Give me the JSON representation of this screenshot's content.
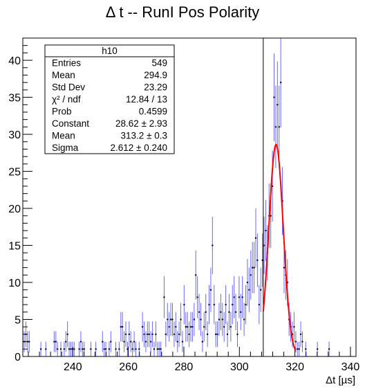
{
  "chart_data": {
    "type": "scatter",
    "title": "Δ t -- RunI Pos Polarity",
    "xlabel": "Δt [µs]",
    "ylabel": "",
    "xlim": [
      222,
      342
    ],
    "ylim": [
      0,
      43
    ],
    "x_ticks": [
      "240",
      "260",
      "280",
      "300",
      "320",
      "340"
    ],
    "y_ticks": [
      "0",
      "5",
      "10",
      "15",
      "20",
      "25",
      "30",
      "35",
      "40"
    ],
    "grid": false,
    "series": [
      {
        "kind": "histogram_points_with_errors",
        "color": "#0000ff",
        "points": [
          [
            222.5,
            2
          ],
          [
            223.1,
            3
          ],
          [
            223.7,
            2
          ],
          [
            224.3,
            2
          ],
          [
            228.5,
            1
          ],
          [
            230.3,
            1
          ],
          [
            233.3,
            2
          ],
          [
            233.9,
            2
          ],
          [
            234.5,
            1
          ],
          [
            235.7,
            1
          ],
          [
            236.9,
            1
          ],
          [
            237.5,
            2
          ],
          [
            238.1,
            3
          ],
          [
            238.7,
            1
          ],
          [
            239.3,
            1
          ],
          [
            239.9,
            1
          ],
          [
            240.5,
            1
          ],
          [
            242.3,
            1
          ],
          [
            242.9,
            2
          ],
          [
            243.5,
            1
          ],
          [
            244.1,
            1
          ],
          [
            246.5,
            1
          ],
          [
            248.3,
            1
          ],
          [
            250.7,
            2
          ],
          [
            251.3,
            1
          ],
          [
            251.9,
            1
          ],
          [
            253.1,
            1
          ],
          [
            253.7,
            2
          ],
          [
            255.5,
            1
          ],
          [
            256.7,
            1
          ],
          [
            257.3,
            4
          ],
          [
            257.9,
            4
          ],
          [
            258.5,
            2
          ],
          [
            259.1,
            3
          ],
          [
            259.7,
            1
          ],
          [
            260.3,
            3
          ],
          [
            260.9,
            2
          ],
          [
            261.5,
            1
          ],
          [
            262.1,
            2
          ],
          [
            262.7,
            1
          ],
          [
            263.9,
            1
          ],
          [
            265.1,
            4
          ],
          [
            265.7,
            3
          ],
          [
            266.3,
            2
          ],
          [
            266.9,
            3
          ],
          [
            267.5,
            3
          ],
          [
            268.1,
            2
          ],
          [
            268.7,
            3
          ],
          [
            269.3,
            1
          ],
          [
            269.9,
            3
          ],
          [
            270.5,
            1
          ],
          [
            271.1,
            1
          ],
          [
            271.7,
            1
          ],
          [
            272.9,
            8
          ],
          [
            273.5,
            3
          ],
          [
            274.1,
            5
          ],
          [
            274.7,
            4
          ],
          [
            275.3,
            5
          ],
          [
            275.9,
            5
          ],
          [
            276.5,
            3
          ],
          [
            277.1,
            4
          ],
          [
            277.7,
            2
          ],
          [
            278.3,
            3
          ],
          [
            278.9,
            5
          ],
          [
            279.5,
            2
          ],
          [
            280.1,
            7
          ],
          [
            280.7,
            4
          ],
          [
            281.3,
            4
          ],
          [
            281.9,
            3
          ],
          [
            282.5,
            4
          ],
          [
            283.1,
            4
          ],
          [
            283.7,
            5
          ],
          [
            284.3,
            11
          ],
          [
            284.9,
            8
          ],
          [
            285.5,
            6
          ],
          [
            286.1,
            5
          ],
          [
            286.7,
            2
          ],
          [
            287.3,
            4
          ],
          [
            287.9,
            6
          ],
          [
            288.5,
            3
          ],
          [
            289.1,
            7
          ],
          [
            289.7,
            9
          ],
          [
            290.3,
            15
          ],
          [
            290.9,
            7
          ],
          [
            291.5,
            3
          ],
          [
            292.1,
            3
          ],
          [
            292.7,
            5
          ],
          [
            293.3,
            6
          ],
          [
            293.9,
            5
          ],
          [
            294.5,
            4
          ],
          [
            295.1,
            7
          ],
          [
            295.7,
            3
          ],
          [
            296.3,
            6
          ],
          [
            296.9,
            4
          ],
          [
            297.5,
            7
          ],
          [
            298.1,
            8
          ],
          [
            298.7,
            6
          ],
          [
            299.3,
            3
          ],
          [
            299.9,
            8
          ],
          [
            300.5,
            6
          ],
          [
            301.1,
            8
          ],
          [
            301.7,
            5
          ],
          [
            302.3,
            7
          ],
          [
            302.9,
            10
          ],
          [
            303.5,
            9
          ],
          [
            304.1,
            11
          ],
          [
            304.7,
            12
          ],
          [
            305.3,
            12
          ],
          [
            305.9,
            16
          ],
          [
            306.5,
            13
          ],
          [
            307.1,
            7
          ],
          [
            307.7,
            9
          ],
          [
            308.3,
            13
          ],
          [
            308.9,
            15
          ],
          [
            309.5,
            17
          ],
          [
            310.1,
            14
          ],
          [
            310.7,
            19
          ],
          [
            311.3,
            19
          ],
          [
            311.9,
            23
          ],
          [
            312.5,
            35
          ],
          [
            313.1,
            31
          ],
          [
            313.7,
            34
          ],
          [
            314.3,
            31
          ],
          [
            314.9,
            37
          ],
          [
            315.5,
            21
          ],
          [
            316.1,
            12
          ],
          [
            316.7,
            11
          ],
          [
            317.3,
            10
          ],
          [
            317.9,
            5
          ],
          [
            318.5,
            4
          ],
          [
            319.1,
            3
          ],
          [
            319.7,
            4
          ],
          [
            320.3,
            2
          ],
          [
            320.9,
            1
          ],
          [
            321.5,
            1
          ],
          [
            322.1,
            3
          ],
          [
            322.7,
            2
          ],
          [
            323.9,
            1
          ],
          [
            328.1,
            1
          ],
          [
            332.3,
            1
          ]
        ]
      }
    ],
    "fit": {
      "function": "gaus",
      "color": "#ff0000",
      "constant": 28.62,
      "mean": 313.2,
      "sigma": 2.612,
      "x_range": [
        308.6,
        320.2
      ]
    },
    "vertical_marker": {
      "x": 308.6,
      "color": "#000000"
    },
    "stats_box": {
      "title": "h10",
      "position": "top-left",
      "rows": [
        {
          "label": "Entries",
          "value": "549"
        },
        {
          "label": "Mean",
          "value": "294.9"
        },
        {
          "label": "Std Dev",
          "value": "23.29"
        },
        {
          "label": "χ² / ndf",
          "value": "12.84 / 13"
        },
        {
          "label": "Prob",
          "value": "0.4599"
        },
        {
          "label": "Constant",
          "value": "28.62 ± 2.93"
        },
        {
          "label": "Mean",
          "value": "313.2 ± 0.3"
        },
        {
          "label": "Sigma",
          "value": "2.612 ± 0.240"
        }
      ]
    }
  }
}
